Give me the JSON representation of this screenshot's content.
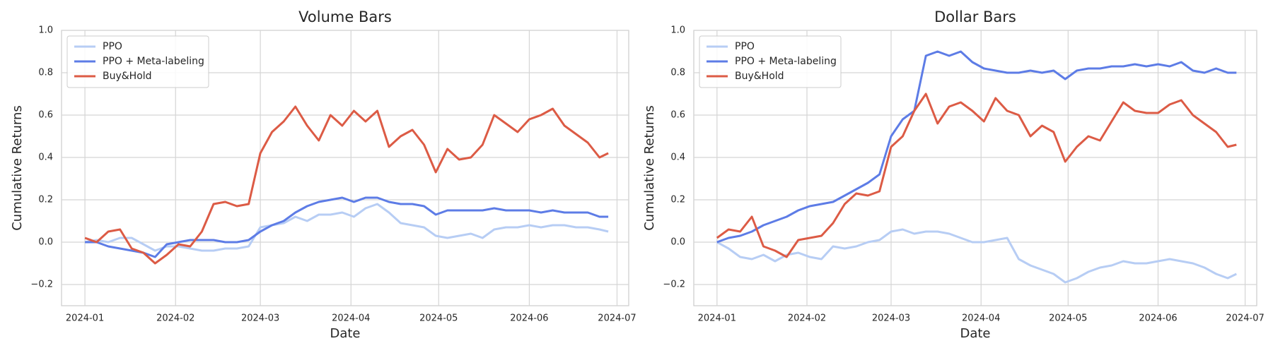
{
  "chart_data": [
    {
      "type": "line",
      "title": "Volume Bars",
      "xlabel": "Date",
      "ylabel": "Cumulative Returns",
      "x": [
        0,
        4,
        8,
        12,
        16,
        20,
        24,
        28,
        32,
        36,
        40,
        44,
        48,
        52,
        56,
        60,
        64,
        68,
        72,
        76,
        80,
        84,
        88,
        92,
        96,
        100,
        104,
        108,
        112,
        116,
        120,
        124,
        128,
        132,
        136,
        140,
        144,
        148,
        152,
        156,
        160,
        164,
        168,
        172,
        176,
        179
      ],
      "series": [
        {
          "name": "PPO",
          "color": "#b7cdf4",
          "values": [
            0,
            0.01,
            0.0,
            0.02,
            0.02,
            -0.01,
            -0.04,
            -0.02,
            -0.02,
            -0.03,
            -0.04,
            -0.04,
            -0.03,
            -0.03,
            -0.02,
            0.07,
            0.08,
            0.09,
            0.12,
            0.1,
            0.13,
            0.13,
            0.14,
            0.12,
            0.16,
            0.18,
            0.14,
            0.09,
            0.08,
            0.07,
            0.03,
            0.02,
            0.03,
            0.04,
            0.02,
            0.06,
            0.07,
            0.07,
            0.08,
            0.07,
            0.08,
            0.08,
            0.07,
            0.07,
            0.06,
            0.05
          ]
        },
        {
          "name": "PPO + Meta-labeling",
          "color": "#5d7ce6",
          "values": [
            0,
            0.0,
            -0.02,
            -0.03,
            -0.04,
            -0.05,
            -0.07,
            -0.01,
            0.0,
            0.01,
            0.01,
            0.01,
            0.0,
            0.0,
            0.01,
            0.05,
            0.08,
            0.1,
            0.14,
            0.17,
            0.19,
            0.2,
            0.21,
            0.19,
            0.21,
            0.21,
            0.19,
            0.18,
            0.18,
            0.17,
            0.13,
            0.15,
            0.15,
            0.15,
            0.15,
            0.16,
            0.15,
            0.15,
            0.15,
            0.14,
            0.15,
            0.14,
            0.14,
            0.14,
            0.12,
            0.12
          ]
        },
        {
          "name": "Buy&Hold",
          "color": "#dc5b45",
          "values": [
            0.02,
            0.0,
            0.05,
            0.06,
            -0.03,
            -0.05,
            -0.1,
            -0.06,
            -0.01,
            -0.02,
            0.05,
            0.18,
            0.19,
            0.17,
            0.18,
            0.42,
            0.52,
            0.57,
            0.64,
            0.55,
            0.48,
            0.6,
            0.55,
            0.62,
            0.57,
            0.62,
            0.45,
            0.5,
            0.53,
            0.46,
            0.33,
            0.44,
            0.39,
            0.4,
            0.46,
            0.6,
            0.56,
            0.52,
            0.58,
            0.6,
            0.63,
            0.55,
            0.51,
            0.47,
            0.4,
            0.42
          ]
        }
      ],
      "xlim": [
        -8,
        186
      ],
      "xticks": [
        {
          "value": 0,
          "label": "2024-01"
        },
        {
          "value": 31,
          "label": "2024-02"
        },
        {
          "value": 60,
          "label": "2024-03"
        },
        {
          "value": 91,
          "label": "2024-04"
        },
        {
          "value": 121,
          "label": "2024-05"
        },
        {
          "value": 152,
          "label": "2024-06"
        },
        {
          "value": 182,
          "label": "2024-07"
        }
      ],
      "ylim": [
        -0.3,
        1.0
      ],
      "yticks": [
        {
          "value": -0.2,
          "label": "−0.2"
        },
        {
          "value": 0,
          "label": "0.0"
        },
        {
          "value": 0.2,
          "label": "0.2"
        },
        {
          "value": 0.4,
          "label": "0.4"
        },
        {
          "value": 0.6,
          "label": "0.6"
        },
        {
          "value": 0.8,
          "label": "0.8"
        },
        {
          "value": 1.0,
          "label": "1.0"
        }
      ],
      "grid": true,
      "legend": "upper left"
    },
    {
      "type": "line",
      "title": "Dollar Bars",
      "xlabel": "Date",
      "ylabel": "Cumulative Returns",
      "x": [
        0,
        4,
        8,
        12,
        16,
        20,
        24,
        28,
        32,
        36,
        40,
        44,
        48,
        52,
        56,
        60,
        64,
        68,
        72,
        76,
        80,
        84,
        88,
        92,
        96,
        100,
        104,
        108,
        112,
        116,
        120,
        124,
        128,
        132,
        136,
        140,
        144,
        148,
        152,
        156,
        160,
        164,
        168,
        172,
        176,
        179
      ],
      "series": [
        {
          "name": "PPO",
          "color": "#b7cdf4",
          "values": [
            0,
            -0.03,
            -0.07,
            -0.08,
            -0.06,
            -0.09,
            -0.06,
            -0.05,
            -0.07,
            -0.08,
            -0.02,
            -0.03,
            -0.02,
            0.0,
            0.01,
            0.05,
            0.06,
            0.04,
            0.05,
            0.05,
            0.04,
            0.02,
            0.0,
            0.0,
            0.01,
            0.02,
            -0.08,
            -0.11,
            -0.13,
            -0.15,
            -0.19,
            -0.17,
            -0.14,
            -0.12,
            -0.11,
            -0.09,
            -0.1,
            -0.1,
            -0.09,
            -0.08,
            -0.09,
            -0.1,
            -0.12,
            -0.15,
            -0.17,
            -0.15
          ]
        },
        {
          "name": "PPO + Meta-labeling",
          "color": "#5d7ce6",
          "values": [
            0,
            0.02,
            0.03,
            0.05,
            0.08,
            0.1,
            0.12,
            0.15,
            0.17,
            0.18,
            0.19,
            0.22,
            0.25,
            0.28,
            0.32,
            0.5,
            0.58,
            0.62,
            0.88,
            0.9,
            0.88,
            0.9,
            0.85,
            0.82,
            0.81,
            0.8,
            0.8,
            0.81,
            0.8,
            0.81,
            0.77,
            0.81,
            0.82,
            0.82,
            0.83,
            0.83,
            0.84,
            0.83,
            0.84,
            0.83,
            0.85,
            0.81,
            0.8,
            0.82,
            0.8,
            0.8
          ]
        },
        {
          "name": "Buy&Hold",
          "color": "#dc5b45",
          "values": [
            0.02,
            0.06,
            0.05,
            0.12,
            -0.02,
            -0.04,
            -0.07,
            0.01,
            0.02,
            0.03,
            0.09,
            0.18,
            0.23,
            0.22,
            0.24,
            0.45,
            0.5,
            0.62,
            0.7,
            0.56,
            0.64,
            0.66,
            0.62,
            0.57,
            0.68,
            0.62,
            0.6,
            0.5,
            0.55,
            0.52,
            0.38,
            0.45,
            0.5,
            0.48,
            0.57,
            0.66,
            0.62,
            0.61,
            0.61,
            0.65,
            0.67,
            0.6,
            0.56,
            0.52,
            0.45,
            0.46
          ]
        }
      ],
      "xlim": [
        -8,
        186
      ],
      "xticks": [
        {
          "value": 0,
          "label": "2024-01"
        },
        {
          "value": 31,
          "label": "2024-02"
        },
        {
          "value": 60,
          "label": "2024-03"
        },
        {
          "value": 91,
          "label": "2024-04"
        },
        {
          "value": 121,
          "label": "2024-05"
        },
        {
          "value": 152,
          "label": "2024-06"
        },
        {
          "value": 182,
          "label": "2024-07"
        }
      ],
      "ylim": [
        -0.3,
        1.0
      ],
      "yticks": [
        {
          "value": -0.2,
          "label": "−0.2"
        },
        {
          "value": 0,
          "label": "0.0"
        },
        {
          "value": 0.2,
          "label": "0.2"
        },
        {
          "value": 0.4,
          "label": "0.4"
        },
        {
          "value": 0.6,
          "label": "0.6"
        },
        {
          "value": 0.8,
          "label": "0.8"
        },
        {
          "value": 1.0,
          "label": "1.0"
        }
      ],
      "grid": true,
      "legend": "upper left"
    }
  ]
}
